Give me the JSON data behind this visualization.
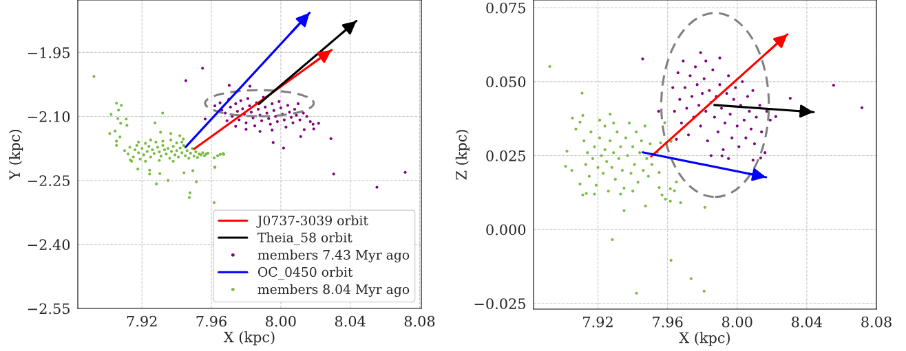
{
  "chart_data": [
    {
      "type": "scatter",
      "xlabel": "X (kpc)",
      "ylabel": "Y (kpc)",
      "xlim": [
        7.883,
        8.081
      ],
      "ylim": [
        -2.55,
        -1.827
      ],
      "xticks": [
        {
          "value": 7.92,
          "label": "7.92"
        },
        {
          "value": 7.96,
          "label": "7.96"
        },
        {
          "value": 8.0,
          "label": "8.00"
        },
        {
          "value": 8.04,
          "label": "8.04"
        },
        {
          "value": 8.08,
          "label": "8.08"
        }
      ],
      "yticks": [
        {
          "value": -1.95,
          "label": "−1.95"
        },
        {
          "value": -2.1,
          "label": "−2.10"
        },
        {
          "value": -2.25,
          "label": "−2.25"
        },
        {
          "value": -2.4,
          "label": "−2.40"
        },
        {
          "value": -2.55,
          "label": "−2.55"
        }
      ],
      "grid": true,
      "legend": "bottom right",
      "series": [
        {
          "type": "line",
          "name": "J0737-3039 orbit",
          "color": "#ff0000",
          "x": [
            7.9501,
            8.0293
          ],
          "values": [
            -2.176,
            -1.944
          ]
        },
        {
          "type": "line",
          "name": "Theia_58 orbit",
          "color": "#000000",
          "x": [
            7.9873,
            8.0436
          ],
          "values": [
            -2.071,
            -1.876
          ]
        },
        {
          "name": "members 7.43 Myr ago",
          "color": "#800080",
          "marker": "circle",
          "x": [
            7.9549,
            7.9453,
            7.9703,
            7.9822,
            7.9564,
            7.9956,
            8.0016,
            8.0289,
            8.0186,
            8.0218,
            8.019,
            8.0115,
            8.0135,
            8.0305,
            8.0554,
            8.0717,
            7.962,
            7.965,
            7.966,
            7.968,
            7.97,
            7.971,
            7.972,
            7.974,
            7.975,
            7.976,
            7.977,
            7.978,
            7.979,
            7.98,
            7.981,
            7.982,
            7.983,
            7.984,
            7.985,
            7.986,
            7.987,
            7.988,
            7.989,
            7.99,
            7.991,
            7.992,
            7.993,
            7.994,
            7.995,
            7.996,
            7.997,
            7.998,
            7.999,
            8.0,
            8.001,
            8.002,
            8.003,
            8.004,
            8.005,
            8.006,
            8.007,
            8.008,
            8.009,
            8.01,
            8.011,
            8.013,
            8.015,
            7.969,
            7.974,
            7.98,
            7.988,
            7.995,
            8.017
          ],
          "values": [
            -1.987,
            -2.016,
            -2.027,
            -2.029,
            -2.106,
            -2.161,
            -2.174,
            -2.152,
            -2.118,
            -2.116,
            -2.129,
            -2.147,
            -2.131,
            -2.235,
            -2.266,
            -2.231,
            -2.075,
            -2.068,
            -2.085,
            -2.092,
            -2.06,
            -2.078,
            -2.1,
            -2.07,
            -2.088,
            -2.108,
            -2.063,
            -2.082,
            -2.095,
            -2.115,
            -2.058,
            -2.075,
            -2.09,
            -2.103,
            -2.122,
            -2.068,
            -2.083,
            -2.097,
            -2.11,
            -2.055,
            -2.078,
            -2.092,
            -2.105,
            -2.118,
            -2.07,
            -2.086,
            -2.1,
            -2.112,
            -2.065,
            -2.08,
            -2.095,
            -2.108,
            -2.125,
            -2.074,
            -2.09,
            -2.102,
            -2.115,
            -2.083,
            -2.097,
            -2.07,
            -2.108,
            -2.092,
            -2.1,
            -2.11,
            -2.123,
            -2.13,
            -2.135,
            -2.132,
            -2.112
          ]
        },
        {
          "type": "line",
          "name": "OC_0450 orbit",
          "color": "#0000ff",
          "x": [
            7.9453,
            8.0166
          ],
          "values": [
            -2.171,
            -1.857
          ]
        },
        {
          "name": "members 8.04 Myr ago",
          "color": "#77bb41",
          "marker": "circle",
          "x": [
            7.8923,
            7.9053,
            7.9081,
            7.9022,
            7.9065,
            7.9061,
            7.9077,
            7.9109,
            7.9113,
            7.9014,
            7.9045,
            7.9073,
            7.9053,
            7.9053,
            7.9319,
            7.9275,
            7.9307,
            7.9366,
            7.9418,
            7.9366,
            7.9438,
            7.9176,
            7.9244,
            7.9244,
            7.9303,
            7.9283,
            7.935,
            7.9442,
            7.9493,
            7.9513,
            7.9477,
            7.9473,
            7.962,
            7.9616,
            7.9133,
            7.9636,
            7.9671,
            7.9616,
            7.9651,
            7.9667,
            7.962,
            7.91,
            7.912,
            7.913,
            7.915,
            7.916,
            7.917,
            7.918,
            7.919,
            7.92,
            7.921,
            7.922,
            7.923,
            7.924,
            7.925,
            7.926,
            7.927,
            7.928,
            7.929,
            7.93,
            7.931,
            7.932,
            7.933,
            7.934,
            7.935,
            7.936,
            7.937,
            7.938,
            7.939,
            7.94,
            7.941,
            7.942,
            7.943,
            7.944,
            7.945,
            7.946,
            7.947,
            7.948,
            7.949,
            7.95,
            7.951,
            7.952,
            7.953,
            7.954,
            7.955,
            7.956,
            7.957,
            7.958,
            7.918,
            7.925,
            7.932,
            7.94,
            7.914,
            7.922,
            7.93,
            7.938,
            7.945,
            7.943
          ],
          "values": [
            -2.006,
            -2.069,
            -2.074,
            -2.095,
            -2.085,
            -2.105,
            -2.116,
            -2.106,
            -2.121,
            -2.14,
            -2.134,
            -2.148,
            -2.158,
            -2.168,
            -2.092,
            -2.115,
            -2.137,
            -2.14,
            -2.145,
            -2.155,
            -2.153,
            -2.223,
            -2.226,
            -2.235,
            -2.234,
            -2.258,
            -2.25,
            -2.232,
            -2.227,
            -2.253,
            -2.279,
            -2.29,
            -2.219,
            -2.302,
            -2.202,
            -2.192,
            -2.189,
            -2.197,
            -2.189,
            -2.187,
            -2.219,
            -2.18,
            -2.188,
            -2.172,
            -2.195,
            -2.178,
            -2.168,
            -2.185,
            -2.2,
            -2.175,
            -2.19,
            -2.163,
            -2.182,
            -2.17,
            -2.195,
            -2.178,
            -2.187,
            -2.16,
            -2.172,
            -2.183,
            -2.193,
            -2.168,
            -2.178,
            -2.188,
            -2.175,
            -2.198,
            -2.182,
            -2.17,
            -2.19,
            -2.18,
            -2.195,
            -2.174,
            -2.185,
            -2.168,
            -2.192,
            -2.18,
            -2.198,
            -2.186,
            -2.175,
            -2.193,
            -2.183,
            -2.196,
            -2.188,
            -2.19,
            -2.185,
            -2.192,
            -2.188,
            -2.186,
            -2.16,
            -2.155,
            -2.158,
            -2.162,
            -2.205,
            -2.205,
            -2.203,
            -2.205,
            -2.172,
            -2.16
          ]
        }
      ]
    },
    {
      "type": "scatter",
      "xlabel": "X (kpc)",
      "ylabel": "Z (kpc)",
      "xlim": [
        7.883,
        8.08
      ],
      "ylim": [
        -0.0269,
        0.0776
      ],
      "xticks": [
        {
          "value": 7.92,
          "label": "7.92"
        },
        {
          "value": 7.96,
          "label": "7.96"
        },
        {
          "value": 8.0,
          "label": "8.00"
        },
        {
          "value": 8.04,
          "label": "8.04"
        },
        {
          "value": 8.08,
          "label": "8.08"
        }
      ],
      "yticks": [
        {
          "value": 0.075,
          "label": "0.075"
        },
        {
          "value": 0.05,
          "label": "0.050"
        },
        {
          "value": 0.025,
          "label": "0.025"
        },
        {
          "value": 0.0,
          "label": "0.000"
        },
        {
          "value": -0.025,
          "label": "−0.025"
        }
      ],
      "grid": true,
      "series": [
        {
          "type": "line",
          "color": "#ff0000",
          "x": [
            7.9505,
            8.0289
          ],
          "values": [
            0.0247,
            0.066
          ]
        },
        {
          "type": "line",
          "color": "#000000",
          "x": [
            7.9869,
            8.044
          ],
          "values": [
            0.0421,
            0.0397
          ]
        },
        {
          "color": "#800080",
          "marker": "circle",
          "x": [
            7.9457,
            7.979,
            8.0554,
            8.0717,
            8.0305,
            8.0222,
            7.9549,
            7.9651,
            8.0091,
            8.0135,
            7.9913,
            7.963,
            7.964,
            7.966,
            7.967,
            7.968,
            7.969,
            7.97,
            7.971,
            7.972,
            7.973,
            7.974,
            7.975,
            7.976,
            7.977,
            7.978,
            7.979,
            7.98,
            7.981,
            7.982,
            7.983,
            7.984,
            7.985,
            7.986,
            7.987,
            7.988,
            7.989,
            7.99,
            7.991,
            7.992,
            7.993,
            7.994,
            7.995,
            7.996,
            7.997,
            7.998,
            7.999,
            8.0,
            8.001,
            8.002,
            8.003,
            8.004,
            8.005,
            8.006,
            8.007,
            8.008,
            8.009,
            8.01,
            8.011,
            8.013,
            8.014,
            8.016,
            8.017,
            8.019,
            7.982,
            7.99,
            7.985,
            7.995
          ],
          "values": [
            0.0577,
            0.0598,
            0.0488,
            0.0412,
            0.0444,
            0.0382,
            0.04,
            0.0305,
            0.0235,
            0.0242,
            0.0249,
            0.048,
            0.04,
            0.053,
            0.044,
            0.036,
            0.057,
            0.048,
            0.041,
            0.032,
            0.052,
            0.045,
            0.038,
            0.055,
            0.049,
            0.042,
            0.035,
            0.046,
            0.051,
            0.04,
            0.03,
            0.047,
            0.043,
            0.054,
            0.038,
            0.045,
            0.033,
            0.049,
            0.041,
            0.027,
            0.036,
            0.046,
            0.052,
            0.039,
            0.031,
            0.044,
            0.048,
            0.035,
            0.028,
            0.042,
            0.05,
            0.037,
            0.031,
            0.045,
            0.04,
            0.034,
            0.047,
            0.029,
            0.038,
            0.042,
            0.033,
            0.026,
            0.04,
            0.037,
            0.057,
            0.058,
            0.025,
            0.024
          ]
        },
        {
          "type": "line",
          "color": "#0000ff",
          "x": [
            7.9457,
            8.0166
          ],
          "values": [
            0.0261,
            0.0177
          ]
        },
        {
          "color": "#77bb41",
          "marker": "circle",
          "x": [
            7.8923,
            7.9109,
            7.9283,
            7.935,
            7.9473,
            7.962,
            7.9735,
            7.9814,
            7.9422,
            7.981,
            7.9014,
            7.9022,
            7.9053,
            7.9113,
            7.9097,
            7.9073,
            7.905,
            7.9113,
            7.9097,
            7.9133,
            7.9568,
            7.9588,
            7.9616,
            7.964,
            7.9675,
            7.9552,
            7.9552,
            7.9616,
            7.9651,
            7.9584,
            7.962,
            7.956,
            7.9541,
            7.912,
            7.913,
            7.914,
            7.915,
            7.916,
            7.917,
            7.918,
            7.919,
            7.92,
            7.921,
            7.922,
            7.923,
            7.924,
            7.924,
            7.925,
            7.926,
            7.927,
            7.928,
            7.929,
            7.93,
            7.931,
            7.932,
            7.933,
            7.934,
            7.935,
            7.936,
            7.937,
            7.938,
            7.939,
            7.94,
            7.941,
            7.942,
            7.943,
            7.944,
            7.945,
            7.946,
            7.947,
            7.948,
            7.949,
            7.95,
            7.951,
            7.921,
            7.929,
            7.918,
            7.933,
            7.94,
            7.927
          ],
          "values": [
            0.0551,
            0.0461,
            -0.0034,
            0.0064,
            0.008,
            -0.0104,
            -0.0166,
            0.0075,
            -0.0215,
            -0.0208,
            0.0214,
            0.0265,
            0.0377,
            0.0386,
            0.0363,
            0.034,
            0.02,
            0.0117,
            0.0154,
            0.0122,
            0.0117,
            0.0103,
            0.0096,
            0.0131,
            0.0091,
            0.0142,
            0.0193,
            0.0138,
            0.0161,
            0.0361,
            0.0298,
            0.0293,
            0.0261,
            0.03,
            0.022,
            0.026,
            0.018,
            0.033,
            0.024,
            0.028,
            0.015,
            0.021,
            0.031,
            0.025,
            0.019,
            0.035,
            0.027,
            0.023,
            0.013,
            0.03,
            0.021,
            0.026,
            0.017,
            0.033,
            0.024,
            0.028,
            0.02,
            0.014,
            0.031,
            0.025,
            0.036,
            0.019,
            0.028,
            0.022,
            0.033,
            0.016,
            0.026,
            0.03,
            0.02,
            0.035,
            0.024,
            0.018,
            0.029,
            0.022,
            0.037,
            0.036,
            0.012,
            0.012,
            0.013,
            0.039
          ]
        }
      ]
    }
  ]
}
